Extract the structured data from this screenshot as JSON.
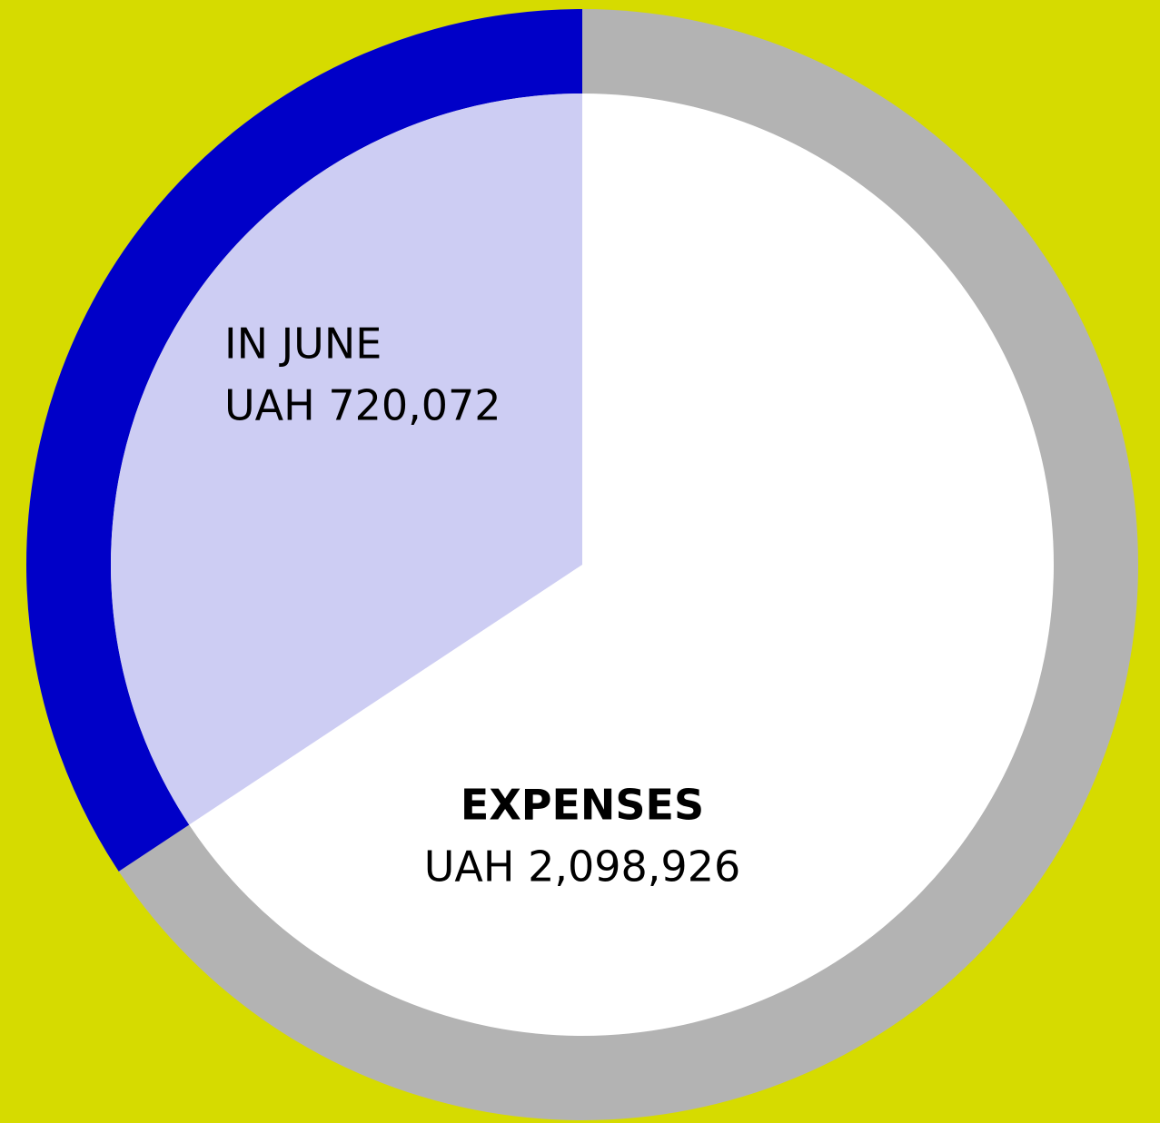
{
  "chart_data": {
    "type": "pie",
    "categories": [
      "IN JUNE",
      "EXPENSES"
    ],
    "values": [
      720072,
      2098926
    ],
    "value_labels": [
      "UAH 720,072",
      "UAH 2,098,926"
    ],
    "colors": {
      "ring": [
        "#0000c8",
        "#b3b3b3"
      ],
      "fill": [
        "#cdcdf3",
        "#ffffff"
      ]
    },
    "background": "#d6db00"
  }
}
